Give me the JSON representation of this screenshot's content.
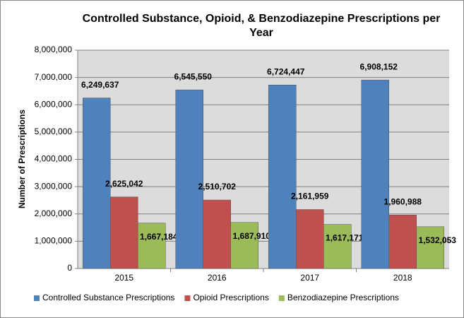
{
  "chart_data": {
    "type": "bar",
    "title": "Controlled Substance, Opioid, & Benzodiazepine Prescriptions per Year",
    "y_label": "Number of Prescriptions",
    "categories": [
      "2015",
      "2016",
      "2017",
      "2018"
    ],
    "series": [
      {
        "name": "Controlled Substance Prescriptions",
        "color": "#4f81bd",
        "values": [
          6249637,
          6545550,
          6724447,
          6908152
        ],
        "value_labels": [
          "6,249,637",
          "6,545,550",
          "6,724,447",
          "6,908,152"
        ]
      },
      {
        "name": "Opioid Prescriptions",
        "color": "#c0504d",
        "values": [
          2625042,
          2510702,
          2161959,
          1960988
        ],
        "value_labels": [
          "2,625,042",
          "2,510,702",
          "2,161,959",
          "1,960,988"
        ]
      },
      {
        "name": "Benzodiazepine Prescriptions",
        "color": "#9bbb59",
        "values": [
          1667184,
          1687910,
          1617171,
          1532053
        ],
        "value_labels": [
          "1,667,184",
          "1,687,910",
          "1,617,171",
          "1,532,053"
        ]
      }
    ],
    "ylim": [
      0,
      8000000
    ],
    "yticks": [
      0,
      {
        "value": 1000000,
        "label": "1,000,000"
      },
      {
        "value": 2000000,
        "label": "2,000,000"
      },
      {
        "value": 3000000,
        "label": "3,000,000"
      },
      {
        "value": 4000000,
        "label": "4,000,000"
      },
      {
        "value": 5000000,
        "label": "5,000,000"
      },
      {
        "value": 6000000,
        "label": "6,000,000"
      },
      {
        "value": 7000000,
        "label": "7,000,000"
      },
      {
        "value": 8000000,
        "label": "8,000,000"
      }
    ],
    "grid": true,
    "legend": "bottom"
  }
}
